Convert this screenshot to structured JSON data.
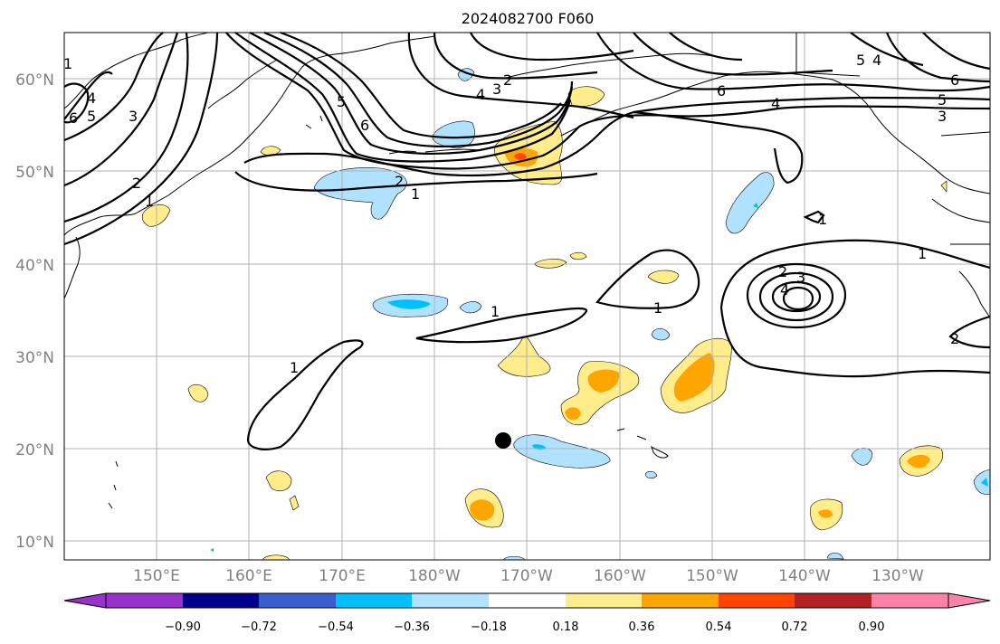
{
  "title": "2024082700 F060",
  "lat_labels": [
    "60°N",
    "50°N",
    "40°N",
    "30°N",
    "20°N",
    "10°N"
  ],
  "lon_labels": [
    "150°E",
    "160°E",
    "170°E",
    "180°W",
    "170°W",
    "160°W",
    "150°W",
    "140°W",
    "130°W"
  ],
  "colorbar": {
    "tick_labels": [
      "−0.90",
      "−0.72",
      "−0.54",
      "−0.36",
      "−0.18",
      "0.18",
      "0.36",
      "0.54",
      "0.72",
      "0.90"
    ],
    "colors": [
      "#9932cc",
      "#00008b",
      "#3a5fcd",
      "#00bfff",
      "#b0e2ff",
      "#ffffff",
      "#ffec8b",
      "#ffa500",
      "#ff4500",
      "#b22222",
      "#ff82ab"
    ]
  },
  "contour_labels": [
    "6",
    "4",
    "5",
    "3",
    "2",
    "1",
    "5",
    "6",
    "2",
    "3",
    "4",
    "2",
    "1",
    "6",
    "4",
    "5",
    "3",
    "6",
    "5",
    "4",
    "1",
    "1",
    "2",
    "3",
    "4",
    "1",
    "1",
    "1",
    "2",
    "1"
  ],
  "marker": {
    "name": "location-dot",
    "lat": 20.9,
    "lon": -172.6
  },
  "colors": {
    "contour": "#000000",
    "grid": "#b0b0b0",
    "axis_text": "#808080"
  }
}
